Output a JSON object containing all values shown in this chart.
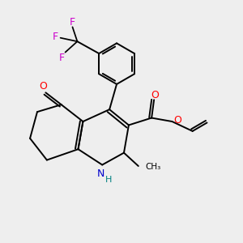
{
  "background_color": "#eeeeee",
  "atom_colors": {
    "C": "#000000",
    "N": "#0000cc",
    "O": "#ff0000",
    "F": "#cc00cc",
    "H": "#008080"
  },
  "bond_color": "#000000",
  "line_width": 1.4,
  "figsize": [
    3.0,
    3.0
  ],
  "dpi": 100
}
